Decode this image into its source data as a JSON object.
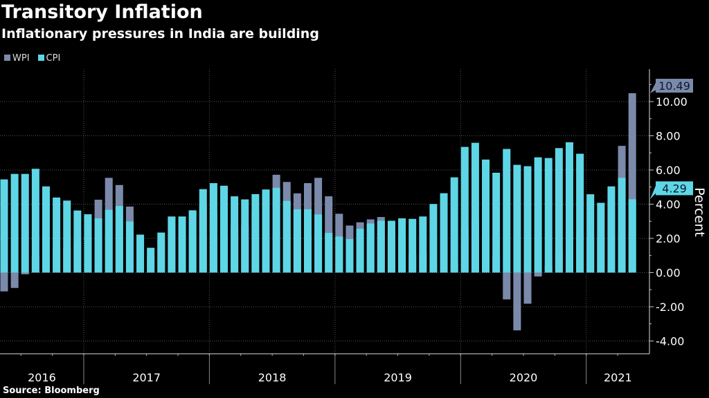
{
  "chart_data": {
    "type": "bar",
    "title": "Transitory Inflation",
    "subtitle": "Inflationary pressures in India are building",
    "ylabel": "Percent",
    "source": "Source: Bloomberg",
    "ylim": [
      -4.75,
      11.9
    ],
    "yticks": [
      "-4.00",
      "-2.00",
      "0.00",
      "2.00",
      "4.00",
      "6.00",
      "8.00",
      "10.00"
    ],
    "grid": true,
    "legend_position": "top-left",
    "years": [
      "2016",
      "2017",
      "2018",
      "2019",
      "2020",
      "2021"
    ],
    "categories": [
      "2016-04",
      "2016-05",
      "2016-06",
      "2016-07",
      "2016-08",
      "2016-09",
      "2016-10",
      "2016-11",
      "2016-12",
      "2017-01",
      "2017-02",
      "2017-03",
      "2017-04",
      "2017-05",
      "2017-06",
      "2017-07",
      "2017-08",
      "2017-09",
      "2017-10",
      "2017-11",
      "2017-12",
      "2018-01",
      "2018-02",
      "2018-03",
      "2018-04",
      "2018-05",
      "2018-06",
      "2018-07",
      "2018-08",
      "2018-09",
      "2018-10",
      "2018-11",
      "2018-12",
      "2019-01",
      "2019-02",
      "2019-03",
      "2019-04",
      "2019-05",
      "2019-06",
      "2019-07",
      "2019-08",
      "2019-09",
      "2019-10",
      "2019-11",
      "2019-12",
      "2020-01",
      "2020-02",
      "2020-03",
      "2020-04",
      "2020-05",
      "2020-06",
      "2020-07",
      "2020-08",
      "2020-09",
      "2020-10",
      "2020-11",
      "2020-12",
      "2021-01",
      "2021-02",
      "2021-03",
      "2021-04"
    ],
    "series": [
      {
        "name": "WPI",
        "color": "#7b8aab",
        "values": [
          -1.1,
          -0.9,
          -0.1,
          1.0,
          1.1,
          1.4,
          1.4,
          1.8,
          2.1,
          4.26,
          5.54,
          5.12,
          3.86,
          2.17,
          0.9,
          1.88,
          3.24,
          2.6,
          3.59,
          3.93,
          3.58,
          2.84,
          2.74,
          2.74,
          3.62,
          4.78,
          5.72,
          5.3,
          4.63,
          5.23,
          5.54,
          4.46,
          3.44,
          2.75,
          2.94,
          3.11,
          3.25,
          2.45,
          2.02,
          1.08,
          1.08,
          0.33,
          0.16,
          0.58,
          2.59,
          3.1,
          2.26,
          1.0,
          -1.57,
          -3.38,
          -1.82,
          -0.23,
          0.41,
          1.32,
          1.48,
          2.29,
          1.95,
          2.03,
          4.17,
          7.41,
          10.49
        ]
      },
      {
        "name": "CPI",
        "color": "#5ed6e6",
        "values": [
          5.45,
          5.77,
          5.77,
          6.07,
          5.04,
          4.39,
          4.21,
          3.63,
          3.41,
          3.17,
          3.67,
          3.89,
          2.99,
          2.22,
          1.45,
          2.34,
          3.28,
          3.28,
          3.64,
          4.88,
          5.23,
          5.08,
          4.46,
          4.28,
          4.59,
          4.86,
          4.96,
          4.19,
          3.7,
          3.7,
          3.4,
          2.32,
          2.11,
          1.96,
          2.56,
          2.87,
          3.03,
          3.03,
          3.17,
          3.14,
          3.28,
          4.01,
          4.64,
          5.57,
          7.35,
          7.59,
          6.61,
          5.84,
          7.23,
          6.3,
          6.22,
          6.74,
          6.7,
          7.28,
          7.62,
          6.95,
          4.58,
          4.08,
          5.04,
          5.54,
          4.29
        ]
      }
    ],
    "last_value_labels": {
      "WPI": "10.49",
      "CPI": "4.29"
    }
  }
}
